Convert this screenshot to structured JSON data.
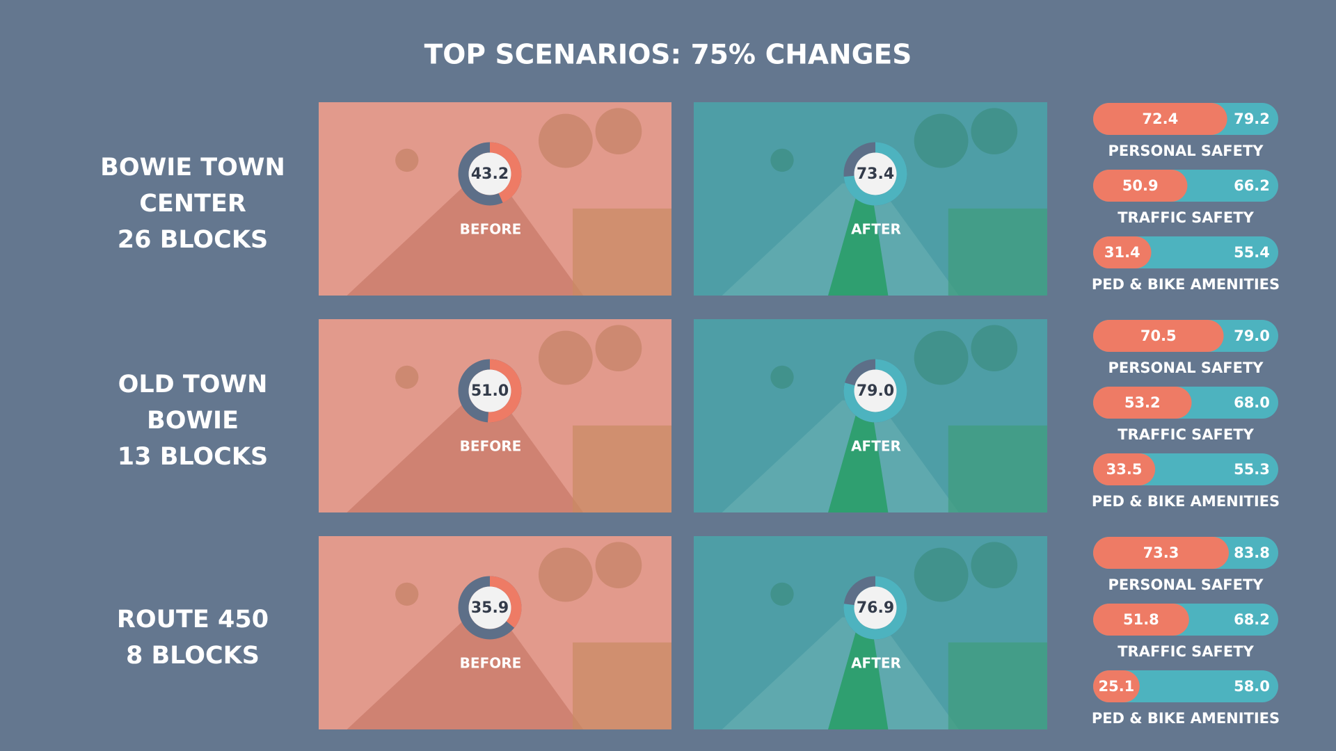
{
  "title": "TOP SCENARIOS: 75% CHANGES",
  "gauge_range": [
    0,
    100
  ],
  "scenarios": [
    {
      "name_lines": [
        "BOWIE TOWN",
        "CENTER",
        "26 BLOCKS"
      ],
      "before": {
        "value": 43.2,
        "label": "43.2",
        "caption": "BEFORE"
      },
      "after": {
        "value": 73.4,
        "label": "73.4",
        "caption": "AFTER"
      },
      "metrics": [
        {
          "name": "PERSONAL SAFETY",
          "before": {
            "value": 72.4,
            "label": "72.4"
          },
          "after": {
            "value": 79.2,
            "label": "79.2"
          }
        },
        {
          "name": "TRAFFIC SAFETY",
          "before": {
            "value": 50.9,
            "label": "50.9"
          },
          "after": {
            "value": 66.2,
            "label": "66.2"
          }
        },
        {
          "name": "PED & BIKE AMENITIES",
          "before": {
            "value": 31.4,
            "label": "31.4"
          },
          "after": {
            "value": 55.4,
            "label": "55.4"
          }
        }
      ]
    },
    {
      "name_lines": [
        "OLD TOWN",
        "BOWIE",
        "13 BLOCKS"
      ],
      "before": {
        "value": 51.0,
        "label": "51.0",
        "caption": "BEFORE"
      },
      "after": {
        "value": 79.0,
        "label": "79.0",
        "caption": "AFTER"
      },
      "metrics": [
        {
          "name": "PERSONAL SAFETY",
          "before": {
            "value": 70.5,
            "label": "70.5"
          },
          "after": {
            "value": 79.0,
            "label": "79.0"
          }
        },
        {
          "name": "TRAFFIC SAFETY",
          "before": {
            "value": 53.2,
            "label": "53.2"
          },
          "after": {
            "value": 68.0,
            "label": "68.0"
          }
        },
        {
          "name": "PED & BIKE AMENITIES",
          "before": {
            "value": 33.5,
            "label": "33.5"
          },
          "after": {
            "value": 55.3,
            "label": "55.3"
          }
        }
      ]
    },
    {
      "name_lines": [
        "ROUTE 450",
        "8 BLOCKS"
      ],
      "before": {
        "value": 35.9,
        "label": "35.9",
        "caption": "BEFORE"
      },
      "after": {
        "value": 76.9,
        "label": "76.9",
        "caption": "AFTER"
      },
      "metrics": [
        {
          "name": "PERSONAL SAFETY",
          "before": {
            "value": 73.3,
            "label": "73.3"
          },
          "after": {
            "value": 83.8,
            "label": "83.8"
          }
        },
        {
          "name": "TRAFFIC SAFETY",
          "before": {
            "value": 51.8,
            "label": "51.8"
          },
          "after": {
            "value": 68.2,
            "label": "68.2"
          }
        },
        {
          "name": "PED & BIKE AMENITIES",
          "before": {
            "value": 25.1,
            "label": "25.1"
          },
          "after": {
            "value": 58.0,
            "label": "58.0"
          }
        }
      ]
    }
  ]
}
